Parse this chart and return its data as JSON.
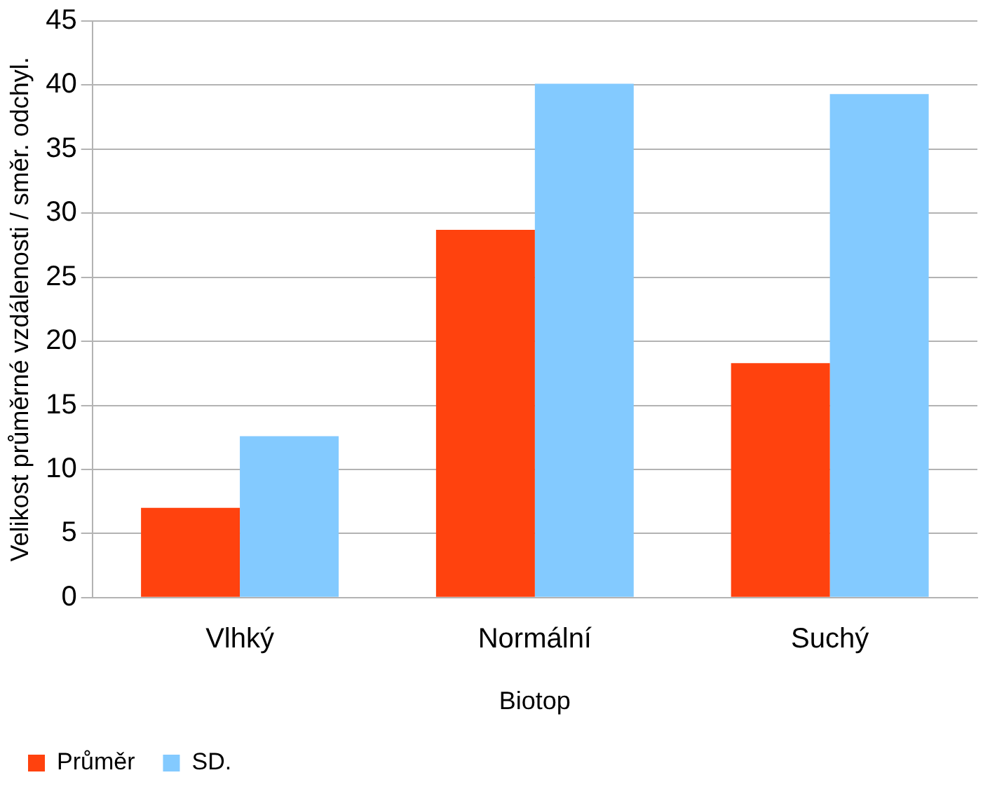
{
  "chart_data": {
    "type": "bar",
    "xlabel": "Biotop",
    "ylabel": "Velikost průměrné vzdálenosti / směr. odchyl.",
    "categories": [
      "Vlhký",
      "Normální",
      "Suchý"
    ],
    "series": [
      {
        "name": "Průměr",
        "color": "#ff420e",
        "values": [
          7,
          28.7,
          18.3
        ]
      },
      {
        "name": "SD.",
        "color": "#83caff",
        "values": [
          12.6,
          40.1,
          39.3
        ]
      }
    ],
    "ylim": [
      0,
      45
    ],
    "yticks": [
      0,
      5,
      10,
      15,
      20,
      25,
      30,
      35,
      40,
      45
    ],
    "grid": "y",
    "legend": "bottom left"
  }
}
